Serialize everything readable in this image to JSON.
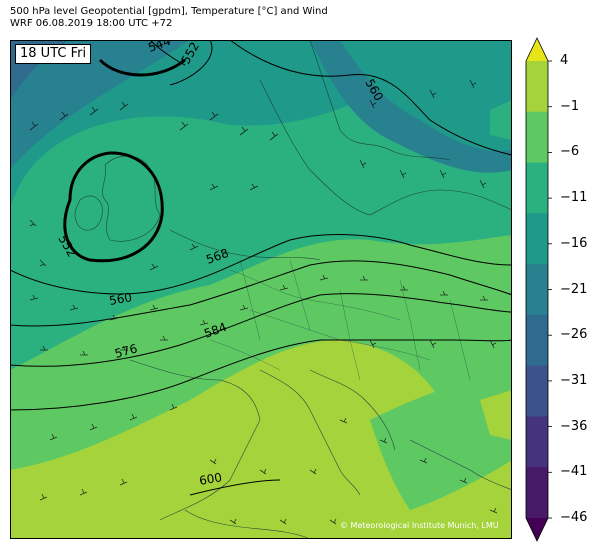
{
  "header": {
    "title_line1": "500 hPa level Geopotential [gpdm], Temperature [°C] and Wind",
    "title_line2": "WRF 06.08.2019 18:00 UTC +72"
  },
  "map": {
    "valid_time_label": "18 UTC Fri",
    "credit": "© Meteorological Institute Munich, LMU",
    "contour_labels": [
      "544",
      "552",
      "560",
      "552",
      "560",
      "568",
      "576",
      "584",
      "600"
    ]
  },
  "colorbar": {
    "ticks": [
      "4",
      "−1",
      "−6",
      "−11",
      "−16",
      "−21",
      "−26",
      "−31",
      "−36",
      "−41",
      "−46"
    ],
    "colors": [
      "#e7e419",
      "#a4d33b",
      "#5ec862",
      "#2bb07f",
      "#1f998a",
      "#27818e",
      "#2f6b8e",
      "#3b528b",
      "#46337e",
      "#471a68",
      "#440154"
    ]
  }
}
